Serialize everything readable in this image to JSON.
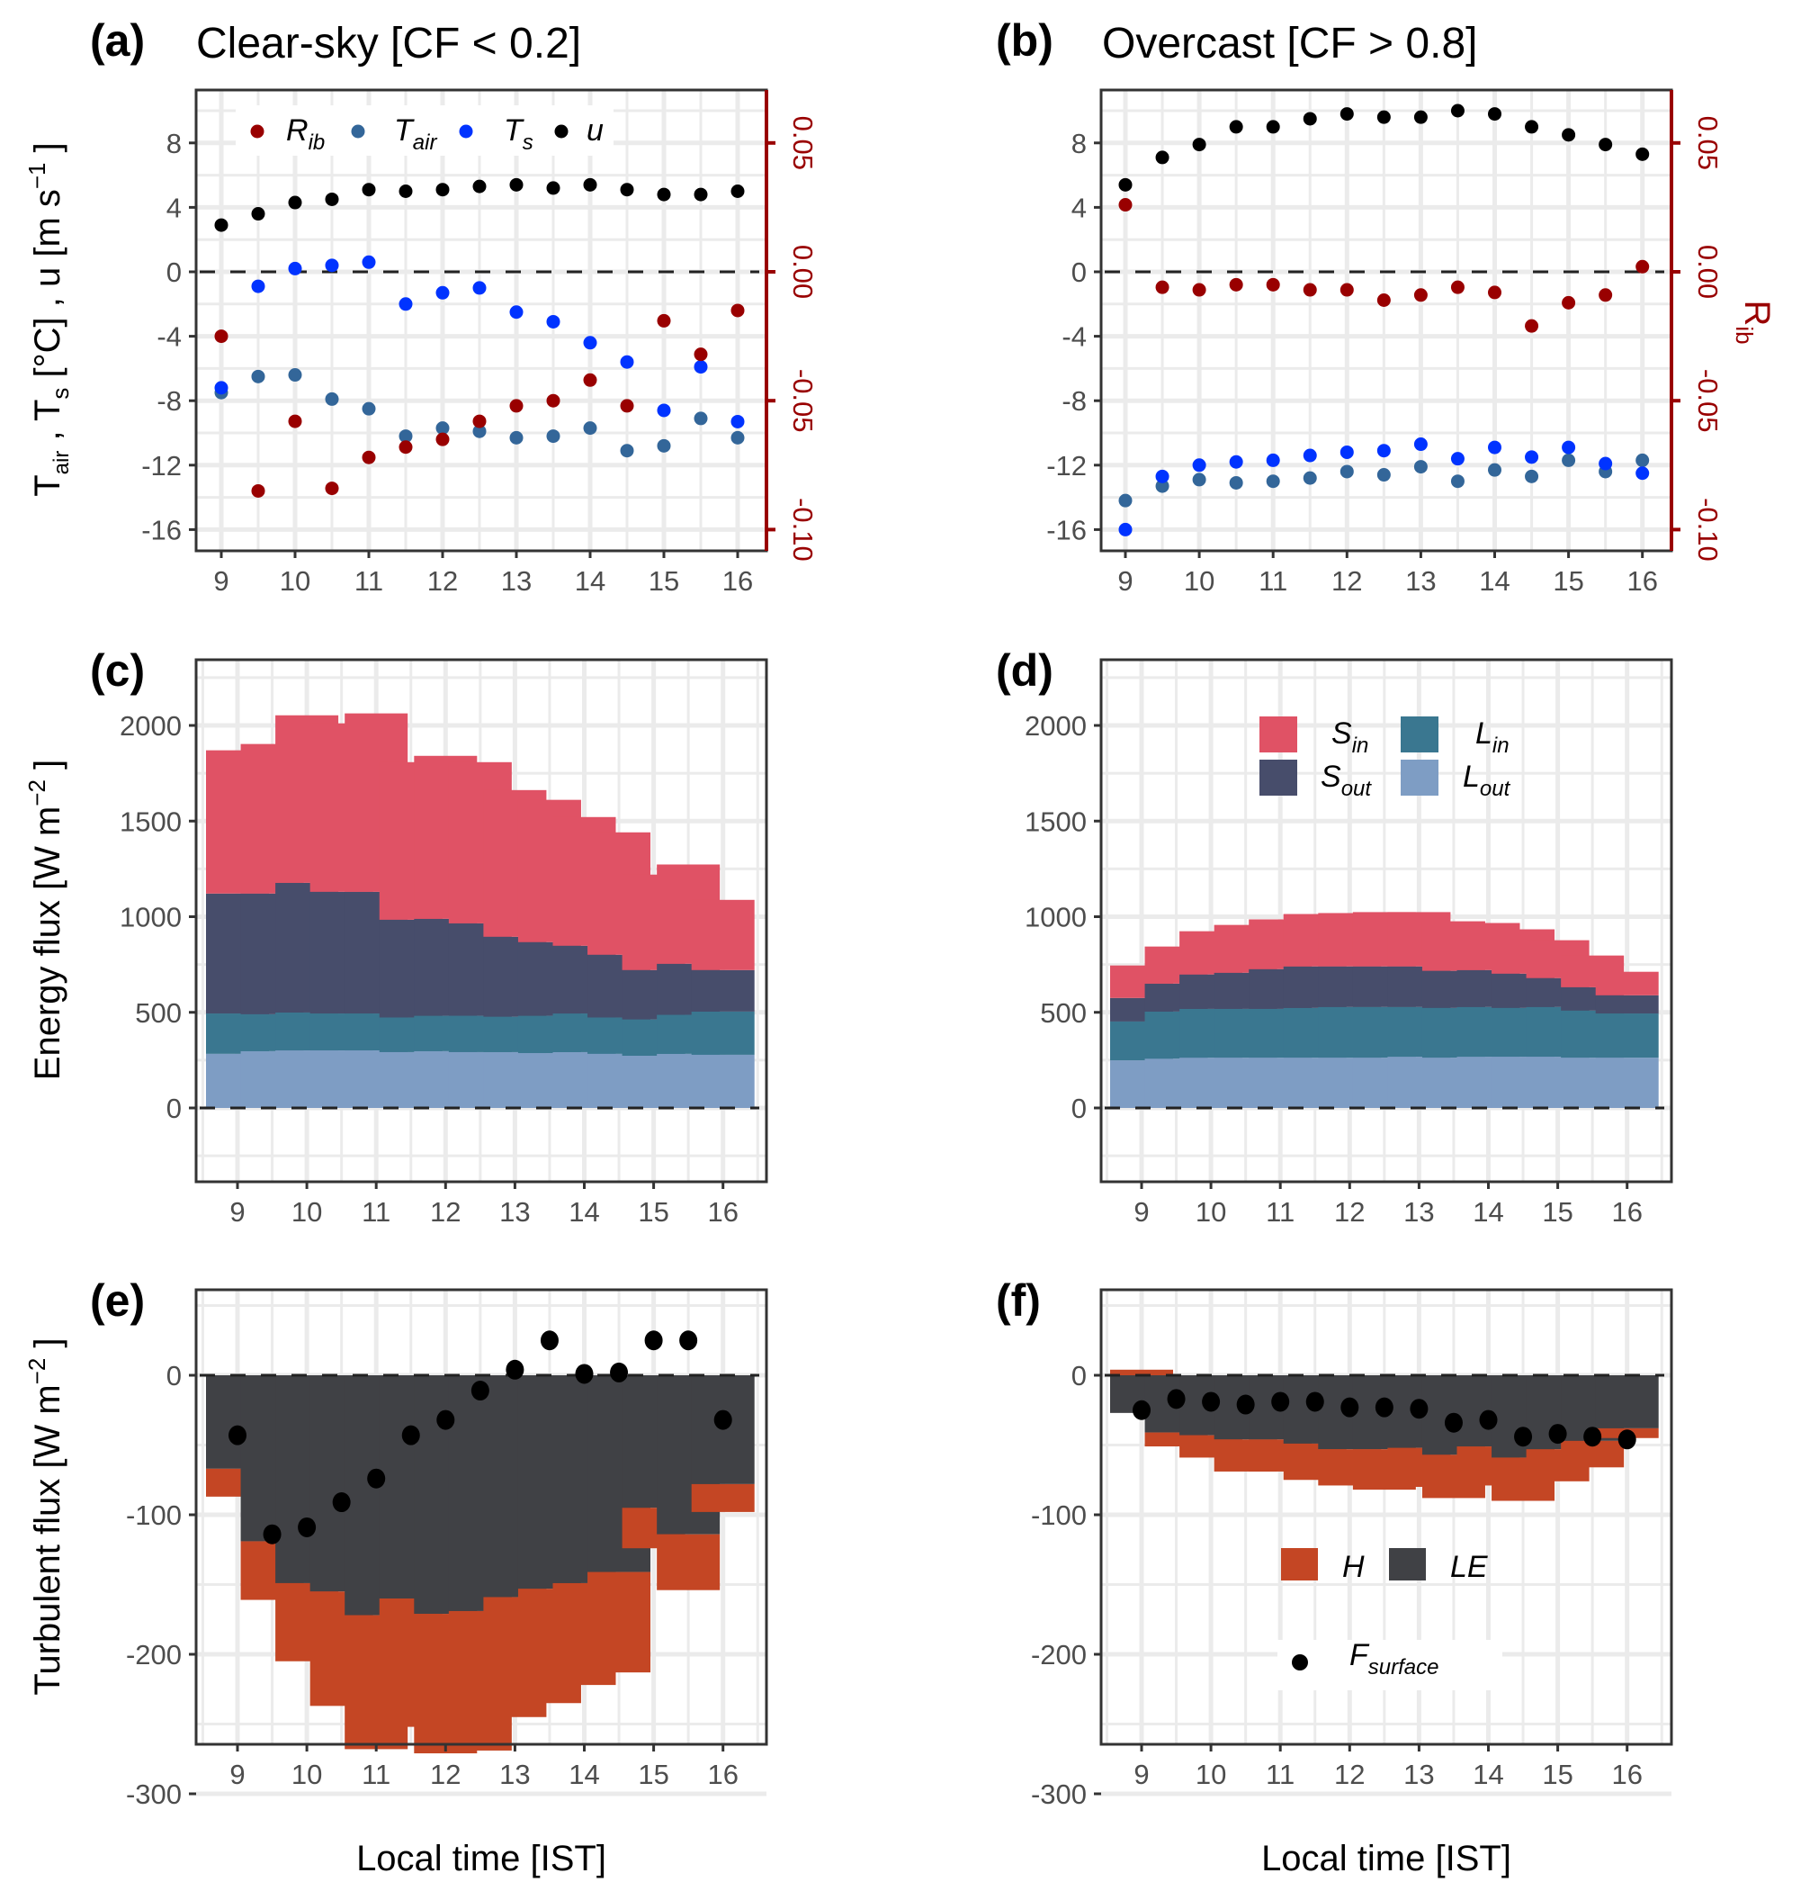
{
  "figure": {
    "panels": {
      "a": {
        "label": "(a)",
        "title": "Clear-sky [CF < 0.2]"
      },
      "b": {
        "label": "(b)",
        "title": "Overcast [CF > 0.8]"
      },
      "c": {
        "label": "(c)"
      },
      "d": {
        "label": "(d)"
      },
      "e": {
        "label": "(e)"
      },
      "f": {
        "label": "(f)"
      }
    },
    "axis_titles": {
      "met_left": "T_air , T_s [°C] , u [m s^-1 ]",
      "met_right": "R_ib",
      "energy": "Energy flux [W m^-2 ]",
      "turbulent": "Turbulent flux [W m^-2 ]",
      "xlabel": "Local time [IST]"
    },
    "legends": {
      "met": [
        {
          "main": "R",
          "sub": "ib",
          "color": "#990000"
        },
        {
          "main": "T",
          "sub": "air",
          "color": "#336699"
        },
        {
          "main": "T",
          "sub": "s",
          "color": "#0033ff"
        },
        {
          "main": "u",
          "sub": "",
          "color": "#000000"
        }
      ],
      "radiation": [
        {
          "main": "S",
          "sub": "in",
          "color": "#e05265"
        },
        {
          "main": "L",
          "sub": "in",
          "color": "#3a7790"
        },
        {
          "main": "S",
          "sub": "out",
          "color": "#474d6b"
        },
        {
          "main": "L",
          "sub": "out",
          "color": "#7e9dc4"
        }
      ],
      "turbulent": [
        {
          "main": "H",
          "sub": "",
          "color": "#c44624"
        },
        {
          "main": "LE",
          "sub": "",
          "color": "#404145"
        },
        {
          "main": "F",
          "sub": "surface",
          "color": "#000000"
        }
      ]
    }
  },
  "chart_data": [
    {
      "id": "a",
      "type": "scatter",
      "title": "Clear-sky [CF < 0.2]",
      "xlabel": "",
      "ylabel": "T_air , T_s [°C] , u [m s^-1]",
      "y2label": "R_ib",
      "x": [
        9,
        9.5,
        10,
        10.5,
        11,
        11.5,
        12,
        12.5,
        13,
        13.5,
        14,
        14.5,
        15,
        15.5,
        16
      ],
      "xticks": [
        9,
        10,
        11,
        12,
        13,
        14,
        15,
        16
      ],
      "yticks": [
        8,
        4,
        0,
        -4,
        -8,
        -12,
        -16
      ],
      "y2ticks": [
        "0.05",
        "0.00",
        "-0.05",
        "-0.10"
      ],
      "ylim": [
        -17.1,
        11.3
      ],
      "y2_scale_note": "R_ib 0.05 aligns with left 8",
      "series": [
        {
          "name": "R_ib",
          "axis": "right",
          "values": [
            -0.025,
            -0.085,
            -0.058,
            -0.084,
            -0.072,
            -0.068,
            -0.065,
            -0.058,
            -0.052,
            -0.05,
            -0.042,
            -0.052,
            -0.019,
            -0.032,
            -0.015
          ]
        },
        {
          "name": "T_air",
          "axis": "left",
          "values": [
            -7.5,
            -6.5,
            -6.4,
            -7.9,
            -8.5,
            -10.2,
            -9.7,
            -9.9,
            -10.3,
            -10.2,
            -9.7,
            -11.1,
            -10.8,
            -9.1,
            -10.3
          ]
        },
        {
          "name": "T_s",
          "axis": "left",
          "values": [
            -7.2,
            -0.9,
            0.2,
            0.4,
            0.6,
            -2.0,
            -1.3,
            -1.0,
            -2.5,
            -3.1,
            -4.4,
            -5.6,
            -8.6,
            -5.9,
            -9.3
          ]
        },
        {
          "name": "u",
          "axis": "left",
          "values": [
            2.9,
            3.6,
            4.3,
            4.5,
            5.1,
            5.0,
            5.1,
            5.3,
            5.4,
            5.2,
            5.4,
            5.1,
            4.8,
            4.8,
            5.0
          ]
        }
      ],
      "legend": "top-left, horizontal",
      "grid": true
    },
    {
      "id": "b",
      "type": "scatter",
      "title": "Overcast [CF > 0.8]",
      "xlabel": "",
      "ylabel": "",
      "y2label": "R_ib",
      "x": [
        9,
        9.5,
        10,
        10.5,
        11,
        11.5,
        12,
        12.5,
        13,
        13.5,
        14,
        14.5,
        15,
        15.5,
        16
      ],
      "xticks": [
        9,
        10,
        11,
        12,
        13,
        14,
        15,
        16
      ],
      "yticks": [
        8,
        4,
        0,
        -4,
        -8,
        -12,
        -16
      ],
      "y2ticks": [
        "0.05",
        "0.00",
        "-0.05",
        "-0.10"
      ],
      "ylim": [
        -17.1,
        11.3
      ],
      "series": [
        {
          "name": "R_ib",
          "axis": "right",
          "values": [
            0.026,
            -0.006,
            -0.007,
            -0.005,
            -0.005,
            -0.007,
            -0.007,
            -0.011,
            -0.009,
            -0.006,
            -0.008,
            -0.021,
            -0.012,
            -0.009,
            0.002
          ]
        },
        {
          "name": "T_air",
          "axis": "left",
          "values": [
            -14.2,
            -13.3,
            -12.9,
            -13.1,
            -13.0,
            -12.8,
            -12.4,
            -12.6,
            -12.1,
            -13.0,
            -12.3,
            -12.7,
            -11.7,
            -12.4,
            -11.7
          ]
        },
        {
          "name": "T_s",
          "axis": "left",
          "values": [
            -16.0,
            -12.7,
            -12.0,
            -11.8,
            -11.7,
            -11.4,
            -11.2,
            -11.1,
            -10.7,
            -11.6,
            -10.9,
            -11.5,
            -10.9,
            -11.9,
            -12.5
          ]
        },
        {
          "name": "u",
          "axis": "left",
          "values": [
            5.4,
            7.1,
            7.9,
            9.0,
            9.0,
            9.5,
            9.8,
            9.6,
            9.6,
            10.0,
            9.8,
            9.0,
            8.5,
            7.9,
            7.3
          ]
        }
      ],
      "grid": true
    },
    {
      "id": "c",
      "type": "bar",
      "stacked": true,
      "xlabel": "",
      "ylabel": "Energy flux [W m^-2]",
      "x": [
        9,
        9.5,
        10,
        10.5,
        11,
        11.5,
        12,
        12.5,
        13,
        13.5,
        14,
        14.5,
        15,
        15.5,
        16
      ],
      "xticks": [
        9,
        10,
        11,
        12,
        13,
        14,
        15,
        16
      ],
      "yticks": [
        2000,
        1500,
        1000,
        500,
        0
      ],
      "ylim": [
        -386,
        2345
      ],
      "series": [
        {
          "name": "L_out",
          "values": [
            283,
            297,
            301,
            301,
            301,
            292,
            297,
            292,
            292,
            287,
            292,
            283,
            273,
            283,
            278
          ]
        },
        {
          "name": "L_in",
          "values": [
            211,
            193,
            198,
            193,
            193,
            181,
            185,
            190,
            185,
            195,
            202,
            190,
            190,
            204,
            226
          ]
        },
        {
          "name": "S_out",
          "values": [
            627,
            631,
            678,
            636,
            636,
            511,
            507,
            483,
            418,
            385,
            354,
            328,
            258,
            267,
            217
          ]
        },
        {
          "name": "S_in",
          "values": [
            749,
            782,
            876,
            881,
            933,
            824,
            852,
            843,
            767,
            744,
            673,
            640,
            499,
            519,
            367
          ]
        }
      ],
      "grid": true
    },
    {
      "id": "d",
      "type": "bar",
      "stacked": true,
      "xlabel": "",
      "ylabel": "",
      "x": [
        9,
        9.5,
        10,
        10.5,
        11,
        11.5,
        12,
        12.5,
        13,
        13.5,
        14,
        14.5,
        15,
        15.5,
        16
      ],
      "xticks": [
        9,
        10,
        11,
        12,
        13,
        14,
        15,
        16
      ],
      "yticks": [
        2000,
        1500,
        1000,
        500,
        0
      ],
      "ylim": [
        -386,
        2345
      ],
      "series": [
        {
          "name": "L_out",
          "values": [
            249,
            258,
            263,
            263,
            263,
            263,
            263,
            263,
            268,
            263,
            268,
            268,
            268,
            263,
            263
          ]
        },
        {
          "name": "L_in",
          "values": [
            203,
            246,
            255,
            255,
            255,
            260,
            265,
            265,
            260,
            260,
            260,
            255,
            260,
            246,
            231
          ]
        },
        {
          "name": "S_out",
          "values": [
            123,
            146,
            180,
            189,
            208,
            217,
            212,
            212,
            212,
            194,
            193,
            179,
            151,
            122,
            95
          ]
        },
        {
          "name": "S_in",
          "values": [
            170,
            194,
            226,
            250,
            260,
            274,
            279,
            284,
            284,
            259,
            246,
            232,
            198,
            166,
            123
          ]
        }
      ],
      "legend": "top-center, 2x2",
      "grid": true
    },
    {
      "id": "e",
      "type": "bar",
      "stacked": true,
      "xlabel": "Local time [IST]",
      "ylabel": "Turbulent flux [W m^-2]",
      "x": [
        9,
        9.5,
        10,
        10.5,
        11,
        11.5,
        12,
        12.5,
        13,
        13.5,
        14,
        14.5,
        15,
        15.5,
        16
      ],
      "xticks": [
        9,
        10,
        11,
        12,
        13,
        14,
        15,
        16
      ],
      "yticks": [
        0,
        -100,
        -200,
        -300
      ],
      "ylim": [
        -316,
        62
      ],
      "series": [
        {
          "name": "LE",
          "values": [
            -67,
            -119,
            -149,
            -155,
            -172,
            -160,
            -171,
            -169,
            -159,
            -153,
            -149,
            -141,
            -95,
            -114,
            -78
          ]
        },
        {
          "name": "H",
          "values": [
            -20,
            -42,
            -56,
            -82,
            -96,
            -92,
            -100,
            -100,
            -86,
            -82,
            -73,
            -72,
            -29,
            -40,
            -20
          ]
        },
        {
          "name": "F_surface",
          "kind": "point",
          "values": [
            -43,
            -114,
            -109,
            -91,
            -74,
            -43,
            -32,
            -11,
            4,
            25,
            1,
            2,
            25,
            25,
            -32
          ]
        }
      ],
      "grid": true
    },
    {
      "id": "f",
      "type": "bar",
      "stacked": true,
      "xlabel": "Local time [IST]",
      "ylabel": "",
      "x": [
        9,
        9.5,
        10,
        10.5,
        11,
        11.5,
        12,
        12.5,
        13,
        13.5,
        14,
        14.5,
        15,
        15.5,
        16
      ],
      "xticks": [
        9,
        10,
        11,
        12,
        13,
        14,
        15,
        16
      ],
      "yticks": [
        0,
        -100,
        -200,
        -300
      ],
      "ylim": [
        -316,
        62
      ],
      "series": [
        {
          "name": "LE",
          "values": [
            -27,
            -41,
            -43,
            -46,
            -46,
            -49,
            -53,
            -53,
            -52,
            -57,
            -51,
            -59,
            -53,
            -47,
            -38
          ]
        },
        {
          "name": "H",
          "values": [
            4,
            -10,
            -16,
            -23,
            -23,
            -26,
            -26,
            -29,
            -28,
            -31,
            -28,
            -31,
            -23,
            -19,
            -7
          ]
        },
        {
          "name": "F_surface",
          "kind": "point",
          "values": [
            -25,
            -17,
            -19,
            -21,
            -19,
            -19,
            -23,
            -23,
            -24,
            -34,
            -32,
            -44,
            -42,
            -44,
            -46
          ]
        }
      ],
      "legend": "center",
      "grid": true
    }
  ]
}
